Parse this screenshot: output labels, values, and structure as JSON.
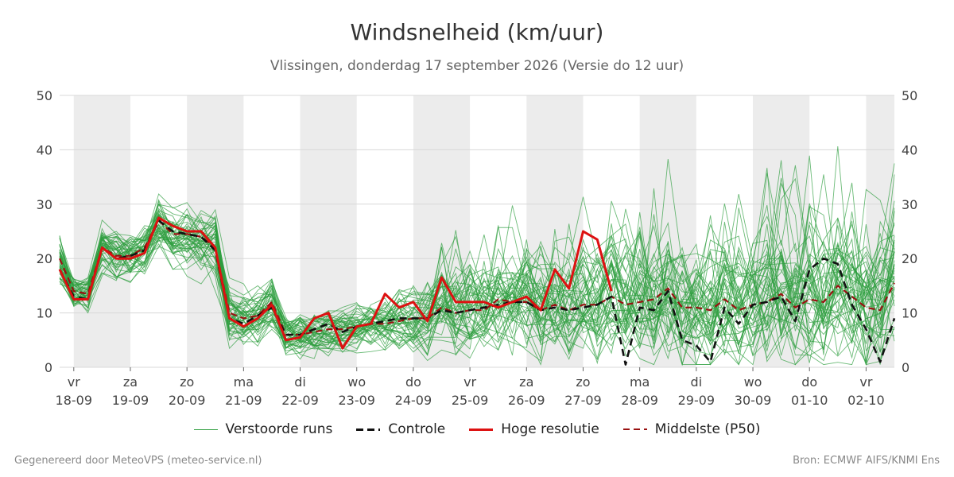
{
  "chart_data": {
    "type": "line",
    "title": "Windsnelheid (km/uur)",
    "subtitle": "Vlissingen, donderdag 17 september 2026 (Versie do 12 uur)",
    "ylim": [
      0,
      50
    ],
    "yticks": [
      0,
      10,
      20,
      30,
      40,
      50
    ],
    "xlim": [
      "2026-09-17T18:00",
      "2026-10-02T12:00"
    ],
    "x_ticks": [
      {
        "date": "2026-09-18",
        "day": "vr",
        "label": "18-09"
      },
      {
        "date": "2026-09-19",
        "day": "za",
        "label": "19-09"
      },
      {
        "date": "2026-09-20",
        "day": "zo",
        "label": "20-09"
      },
      {
        "date": "2026-09-21",
        "day": "ma",
        "label": "21-09"
      },
      {
        "date": "2026-09-22",
        "day": "di",
        "label": "22-09"
      },
      {
        "date": "2026-09-23",
        "day": "wo",
        "label": "23-09"
      },
      {
        "date": "2026-09-24",
        "day": "do",
        "label": "24-09"
      },
      {
        "date": "2026-09-25",
        "day": "vr",
        "label": "25-09"
      },
      {
        "date": "2026-09-26",
        "day": "za",
        "label": "26-09"
      },
      {
        "date": "2026-09-27",
        "day": "zo",
        "label": "27-09"
      },
      {
        "date": "2026-09-28",
        "day": "ma",
        "label": "28-09"
      },
      {
        "date": "2026-09-29",
        "day": "di",
        "label": "29-09"
      },
      {
        "date": "2026-09-30",
        "day": "wo",
        "label": "30-09"
      },
      {
        "date": "2026-10-01",
        "day": "do",
        "label": "01-10"
      },
      {
        "date": "2026-10-02",
        "day": "vr",
        "label": "02-10"
      }
    ],
    "shaded_days": [
      "2026-09-18",
      "2026-09-20",
      "2026-09-22",
      "2026-09-24",
      "2026-09-26",
      "2026-09-28",
      "2026-09-30",
      "2026-10-02"
    ],
    "grid": true,
    "legend_position": "bottom",
    "series": [
      {
        "name": "Hoge resolutie",
        "color": "#dd1111",
        "style": "solid",
        "points": [
          [
            "2026-09-17T18:00",
            18
          ],
          [
            "2026-09-18T00:00",
            12.5
          ],
          [
            "2026-09-18T06:00",
            12.5
          ],
          [
            "2026-09-18T12:00",
            22
          ],
          [
            "2026-09-18T18:00",
            20
          ],
          [
            "2026-09-19T00:00",
            20
          ],
          [
            "2026-09-19T06:00",
            21
          ],
          [
            "2026-09-19T12:00",
            27.5
          ],
          [
            "2026-09-19T18:00",
            26
          ],
          [
            "2026-09-20T00:00",
            25
          ],
          [
            "2026-09-20T06:00",
            25
          ],
          [
            "2026-09-20T12:00",
            22
          ],
          [
            "2026-09-20T18:00",
            9
          ],
          [
            "2026-09-21T00:00",
            7.5
          ],
          [
            "2026-09-21T06:00",
            9
          ],
          [
            "2026-09-21T12:00",
            11.5
          ],
          [
            "2026-09-21T18:00",
            5
          ],
          [
            "2026-09-22T00:00",
            5.5
          ],
          [
            "2026-09-22T06:00",
            9
          ],
          [
            "2026-09-22T12:00",
            10
          ],
          [
            "2026-09-22T18:00",
            3.5
          ],
          [
            "2026-09-23T00:00",
            7.5
          ],
          [
            "2026-09-23T06:00",
            8
          ],
          [
            "2026-09-23T12:00",
            13.5
          ],
          [
            "2026-09-23T18:00",
            11
          ],
          [
            "2026-09-24T00:00",
            12
          ],
          [
            "2026-09-24T06:00",
            8.5
          ],
          [
            "2026-09-24T12:00",
            16.5
          ],
          [
            "2026-09-24T18:00",
            12
          ],
          [
            "2026-09-25T00:00",
            12
          ],
          [
            "2026-09-25T06:00",
            12
          ],
          [
            "2026-09-25T12:00",
            11
          ],
          [
            "2026-09-25T18:00",
            12
          ],
          [
            "2026-09-26T00:00",
            13
          ],
          [
            "2026-09-26T06:00",
            10.5
          ],
          [
            "2026-09-26T12:00",
            18
          ],
          [
            "2026-09-26T18:00",
            14.5
          ],
          [
            "2026-09-27T00:00",
            25
          ],
          [
            "2026-09-27T06:00",
            23.5
          ],
          [
            "2026-09-27T12:00",
            14
          ]
        ]
      },
      {
        "name": "Controle",
        "color": "#111111",
        "style": "dashed",
        "points": [
          [
            "2026-09-17T18:00",
            18
          ],
          [
            "2026-09-18T00:00",
            13
          ],
          [
            "2026-09-18T06:00",
            12.5
          ],
          [
            "2026-09-18T12:00",
            22
          ],
          [
            "2026-09-18T18:00",
            20
          ],
          [
            "2026-09-19T00:00",
            20.5
          ],
          [
            "2026-09-19T06:00",
            21.5
          ],
          [
            "2026-09-19T12:00",
            27
          ],
          [
            "2026-09-19T18:00",
            25
          ],
          [
            "2026-09-20T00:00",
            24.5
          ],
          [
            "2026-09-20T06:00",
            24
          ],
          [
            "2026-09-20T12:00",
            21.5
          ],
          [
            "2026-09-20T18:00",
            9
          ],
          [
            "2026-09-21T00:00",
            8
          ],
          [
            "2026-09-21T06:00",
            9.5
          ],
          [
            "2026-09-21T12:00",
            11
          ],
          [
            "2026-09-21T18:00",
            6
          ],
          [
            "2026-09-22T00:00",
            6
          ],
          [
            "2026-09-22T06:00",
            7
          ],
          [
            "2026-09-22T12:00",
            8
          ],
          [
            "2026-09-22T18:00",
            6.5
          ],
          [
            "2026-09-23T00:00",
            7.5
          ],
          [
            "2026-09-23T06:00",
            8
          ],
          [
            "2026-09-23T12:00",
            8.5
          ],
          [
            "2026-09-23T18:00",
            9
          ],
          [
            "2026-09-24T00:00",
            9
          ],
          [
            "2026-09-24T06:00",
            9
          ],
          [
            "2026-09-24T12:00",
            10.5
          ],
          [
            "2026-09-24T18:00",
            10
          ],
          [
            "2026-09-25T00:00",
            10.5
          ],
          [
            "2026-09-25T06:00",
            11
          ],
          [
            "2026-09-25T12:00",
            11.5
          ],
          [
            "2026-09-25T18:00",
            12
          ],
          [
            "2026-09-26T00:00",
            12
          ],
          [
            "2026-09-26T06:00",
            10.5
          ],
          [
            "2026-09-26T12:00",
            11
          ],
          [
            "2026-09-26T18:00",
            10.5
          ],
          [
            "2026-09-27T00:00",
            11
          ],
          [
            "2026-09-27T06:00",
            11.5
          ],
          [
            "2026-09-27T12:00",
            13
          ],
          [
            "2026-09-27T18:00",
            0.5
          ],
          [
            "2026-09-28T00:00",
            11
          ],
          [
            "2026-09-28T06:00",
            10.5
          ],
          [
            "2026-09-28T12:00",
            14
          ],
          [
            "2026-09-28T18:00",
            5
          ],
          [
            "2026-09-29T00:00",
            4
          ],
          [
            "2026-09-29T06:00",
            1
          ],
          [
            "2026-09-29T12:00",
            11
          ],
          [
            "2026-09-29T18:00",
            8
          ],
          [
            "2026-09-30T00:00",
            11.5
          ],
          [
            "2026-09-30T06:00",
            12
          ],
          [
            "2026-09-30T12:00",
            13
          ],
          [
            "2026-09-30T18:00",
            8.5
          ],
          [
            "2026-10-01T00:00",
            18
          ],
          [
            "2026-10-01T06:00",
            20
          ],
          [
            "2026-10-01T12:00",
            19
          ],
          [
            "2026-10-01T18:00",
            11.5
          ],
          [
            "2026-10-02T00:00",
            7
          ],
          [
            "2026-10-02T06:00",
            1
          ],
          [
            "2026-10-02T12:00",
            9
          ]
        ]
      },
      {
        "name": "Middelste (P50)",
        "color": "#991111",
        "style": "dashed",
        "points": [
          [
            "2026-09-17T18:00",
            20
          ],
          [
            "2026-09-18T00:00",
            14
          ],
          [
            "2026-09-18T06:00",
            13.5
          ],
          [
            "2026-09-18T12:00",
            22
          ],
          [
            "2026-09-18T18:00",
            20.5
          ],
          [
            "2026-09-19T00:00",
            20.5
          ],
          [
            "2026-09-19T06:00",
            22
          ],
          [
            "2026-09-19T12:00",
            27
          ],
          [
            "2026-09-19T18:00",
            24.5
          ],
          [
            "2026-09-20T00:00",
            24.5
          ],
          [
            "2026-09-20T06:00",
            24
          ],
          [
            "2026-09-20T12:00",
            22
          ],
          [
            "2026-09-20T18:00",
            10
          ],
          [
            "2026-09-21T00:00",
            9
          ],
          [
            "2026-09-21T06:00",
            9.5
          ],
          [
            "2026-09-21T12:00",
            12
          ],
          [
            "2026-09-21T18:00",
            6
          ],
          [
            "2026-09-22T00:00",
            6
          ],
          [
            "2026-09-22T06:00",
            6.5
          ],
          [
            "2026-09-22T12:00",
            7
          ],
          [
            "2026-09-22T18:00",
            7
          ],
          [
            "2026-09-23T00:00",
            7.5
          ],
          [
            "2026-09-23T06:00",
            8
          ],
          [
            "2026-09-23T12:00",
            8
          ],
          [
            "2026-09-23T18:00",
            8.5
          ],
          [
            "2026-09-24T00:00",
            9
          ],
          [
            "2026-09-24T06:00",
            9
          ],
          [
            "2026-09-24T12:00",
            11
          ],
          [
            "2026-09-24T18:00",
            10
          ],
          [
            "2026-09-25T00:00",
            10.5
          ],
          [
            "2026-09-25T06:00",
            10.5
          ],
          [
            "2026-09-25T12:00",
            12.5
          ],
          [
            "2026-09-25T18:00",
            12
          ],
          [
            "2026-09-26T00:00",
            12
          ],
          [
            "2026-09-26T06:00",
            10.5
          ],
          [
            "2026-09-26T12:00",
            11.5
          ],
          [
            "2026-09-26T18:00",
            10.5
          ],
          [
            "2026-09-27T00:00",
            11.5
          ],
          [
            "2026-09-27T06:00",
            11.5
          ],
          [
            "2026-09-27T12:00",
            13
          ],
          [
            "2026-09-27T18:00",
            11.5
          ],
          [
            "2026-09-28T00:00",
            12
          ],
          [
            "2026-09-28T06:00",
            12.5
          ],
          [
            "2026-09-28T12:00",
            14.5
          ],
          [
            "2026-09-28T18:00",
            11
          ],
          [
            "2026-09-29T00:00",
            11
          ],
          [
            "2026-09-29T06:00",
            10.5
          ],
          [
            "2026-09-29T12:00",
            12.5
          ],
          [
            "2026-09-29T18:00",
            10.5
          ],
          [
            "2026-09-30T00:00",
            11.5
          ],
          [
            "2026-09-30T06:00",
            12
          ],
          [
            "2026-09-30T12:00",
            13.5
          ],
          [
            "2026-09-30T18:00",
            11
          ],
          [
            "2026-10-01T00:00",
            12.5
          ],
          [
            "2026-10-01T06:00",
            12
          ],
          [
            "2026-10-01T12:00",
            15
          ],
          [
            "2026-10-01T18:00",
            13
          ],
          [
            "2026-10-02T00:00",
            11
          ],
          [
            "2026-10-02T06:00",
            10.5
          ],
          [
            "2026-10-02T12:00",
            15.5
          ]
        ]
      }
    ],
    "ensemble": {
      "name": "Verstoorde runs",
      "color": "#2e9e3e",
      "count": 50,
      "interval_hours": 6,
      "envelope": {
        "p50": [
          20,
          14,
          13.5,
          22,
          20.5,
          20.5,
          22,
          27,
          24.5,
          24.5,
          24,
          22,
          10,
          9,
          9.5,
          12,
          6,
          6,
          6.5,
          7,
          7,
          7.5,
          8,
          8,
          8.5,
          9,
          9,
          11,
          10,
          10.5,
          10.5,
          12.5,
          12,
          12,
          10.5,
          11.5,
          10.5,
          11.5,
          11.5,
          13,
          11.5,
          12,
          12.5,
          14.5,
          11,
          11,
          10.5,
          12.5,
          10.5,
          11.5,
          12,
          13.5,
          11,
          12.5,
          12,
          15,
          13,
          11,
          10.5,
          15.5
        ],
        "spread": [
          4.5,
          2.5,
          2.5,
          3.5,
          3,
          3,
          3.5,
          4,
          4,
          4,
          4.5,
          4.5,
          4,
          3.5,
          3.5,
          4,
          3,
          3,
          3,
          3,
          3,
          3,
          3.5,
          3.5,
          4,
          4.5,
          5,
          6,
          6,
          6,
          6,
          6.5,
          6.5,
          6.5,
          7,
          7,
          7,
          7.5,
          7.5,
          8,
          8,
          8,
          8.5,
          8.5,
          8.5,
          8.5,
          8.5,
          9,
          9,
          9,
          9,
          9,
          9,
          9,
          9,
          9,
          9,
          9,
          9,
          9
        ]
      }
    }
  },
  "legend": {
    "ensemble_label": "Verstoorde runs",
    "control_label": "Controle",
    "hires_label": "Hoge resolutie",
    "p50_label": "Middelste (P50)"
  },
  "footer": {
    "left": "Gegenereerd door MeteoVPS (meteo-service.nl)",
    "right": "Bron: ECMWF AIFS/KNMI Ens"
  }
}
